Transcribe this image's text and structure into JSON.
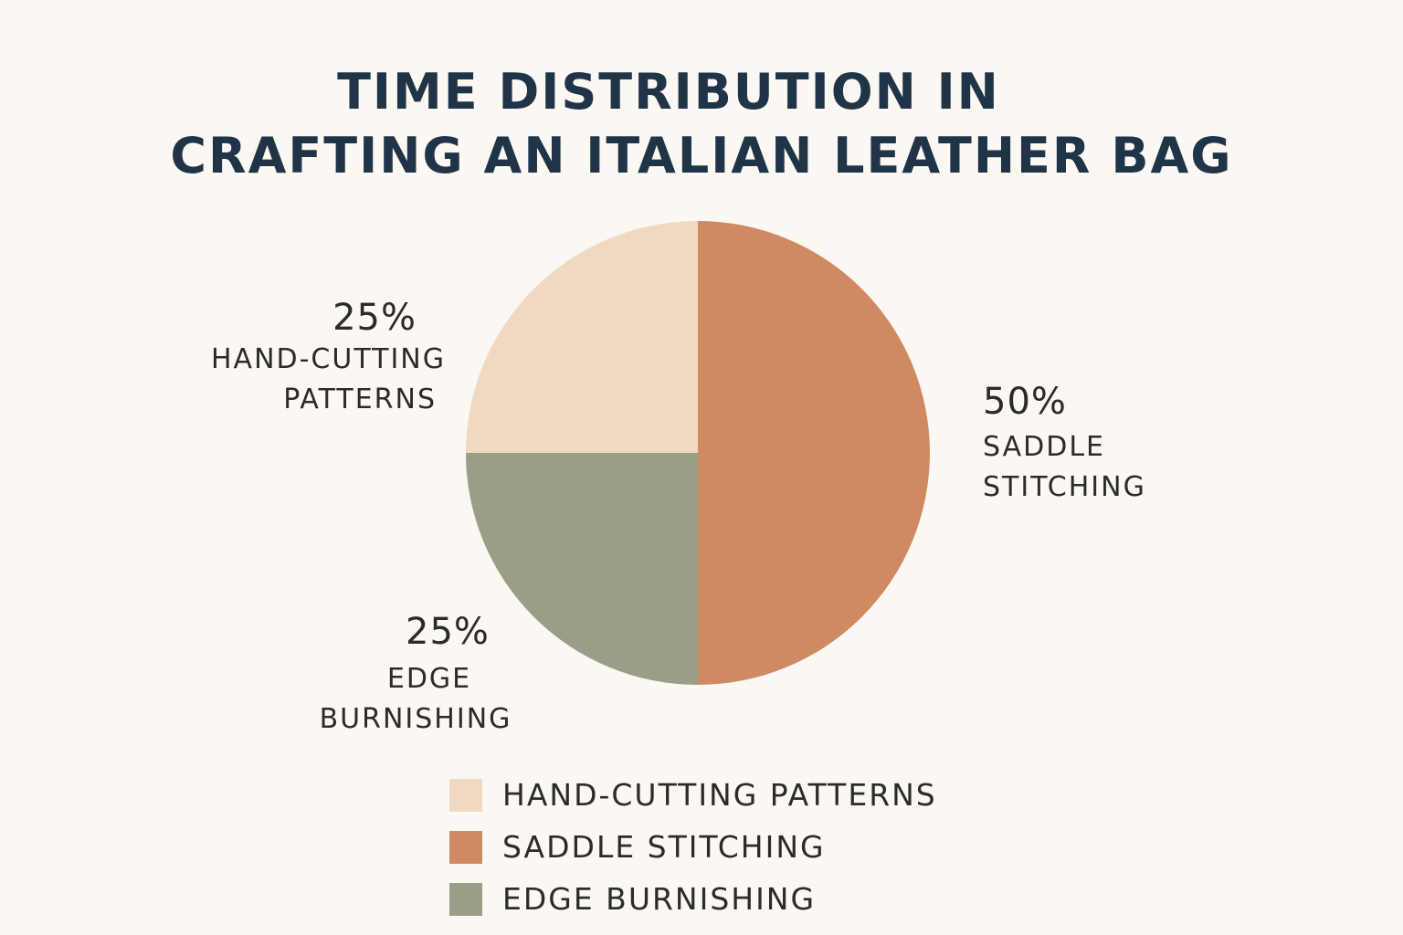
{
  "chart_data": {
    "type": "pie",
    "title_lines": [
      "TIME DISTRIBUTION IN",
      "CRAFTING AN ITALIAN LEATHER BAG"
    ],
    "legend_placement": "bottom",
    "slices": [
      {
        "name": "HAND-CUTTING PATTERNS",
        "label_lines": [
          "HAND-CUTTING",
          "PATTERNS"
        ],
        "value": 25,
        "value_label": "25%",
        "color": "#efd9c1"
      },
      {
        "name": "SADDLE STITCHING",
        "label_lines": [
          "SADDLE",
          "STITCHING"
        ],
        "value": 50,
        "value_label": "50%",
        "color": "#cf8a62"
      },
      {
        "name": "EDGE BURNISHING",
        "label_lines": [
          "EDGE",
          "BURNISHING"
        ],
        "value": 25,
        "value_label": "25%",
        "color": "#9b9e86"
      }
    ],
    "legend": [
      {
        "label": "HAND-CUTTING PATTERNS",
        "color": "#efd9c1"
      },
      {
        "label": "SADDLE STITCHING",
        "color": "#cf8a62"
      },
      {
        "label": "EDGE BURNISHING",
        "color": "#9b9e86"
      }
    ]
  }
}
